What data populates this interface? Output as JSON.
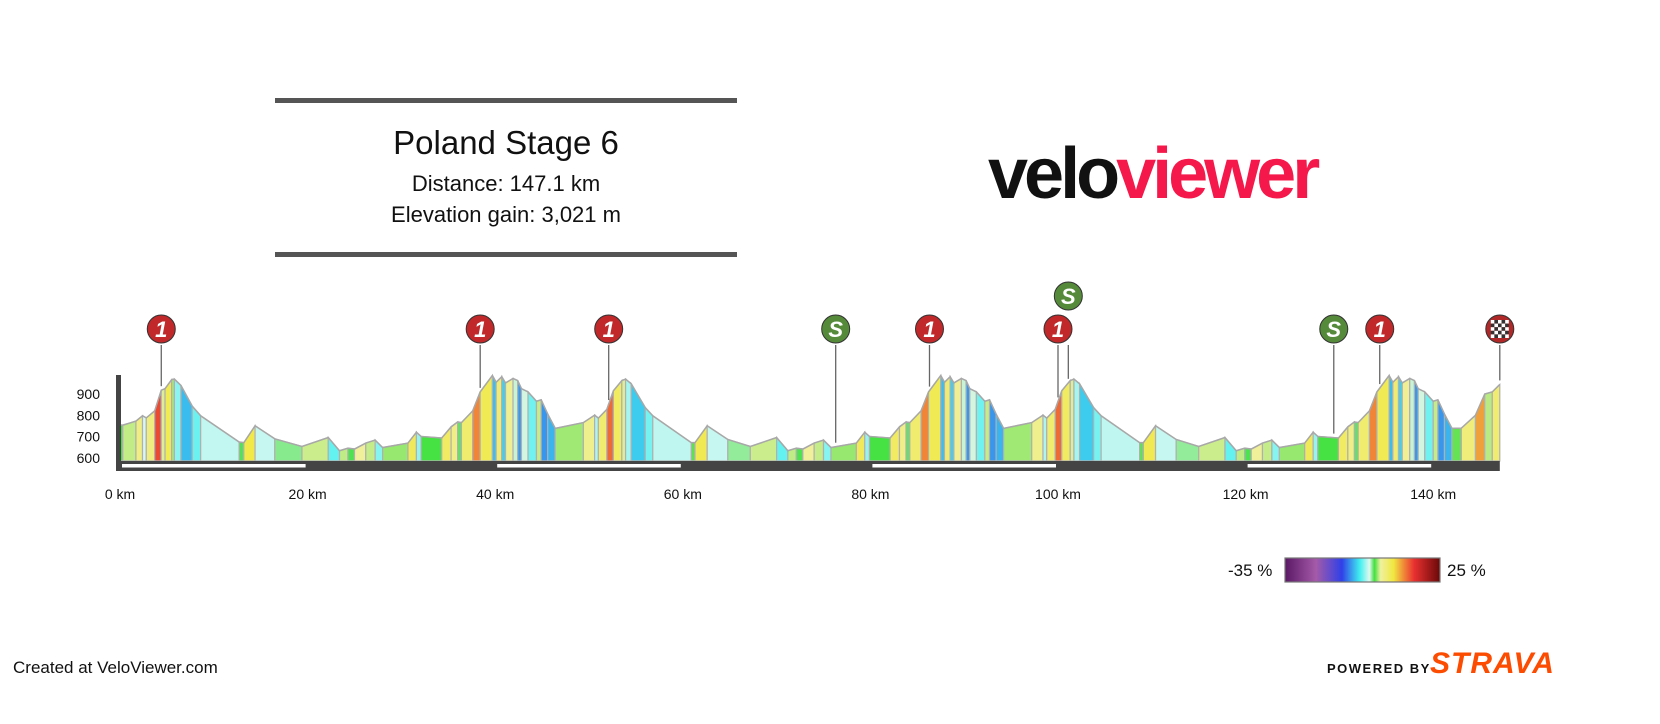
{
  "header": {
    "title": "Poland Stage 6",
    "distance": "Distance: 147.1 km",
    "elevation_gain": "Elevation gain: 3,021 m"
  },
  "logo": {
    "part1": "velo",
    "part2": "viewer",
    "color1": "#111111",
    "color2": "#f5184a"
  },
  "footer": {
    "created": "Created at VeloViewer.com",
    "powered_by": "POWERED BY",
    "strava": "STRAVA",
    "strava_color": "#fc4c02"
  },
  "legend": {
    "min_label": "-35 %",
    "max_label": "25 %",
    "min": -35,
    "max": 25,
    "stops": [
      [
        -35,
        "#5a1865"
      ],
      [
        -23,
        "#a45aa8"
      ],
      [
        -13,
        "#3040e8"
      ],
      [
        -6,
        "#40f0f0"
      ],
      [
        -2.3,
        "#e0f8f0"
      ],
      [
        -0.4,
        "#40e040"
      ],
      [
        2,
        "#f0f0a0"
      ],
      [
        7,
        "#f0e840"
      ],
      [
        11,
        "#f08838"
      ],
      [
        15,
        "#e83030"
      ],
      [
        25,
        "#6a0808"
      ]
    ]
  },
  "chart_data": {
    "type": "area",
    "xlabel": "",
    "ylabel": "",
    "x_unit": "km",
    "y_unit": "m",
    "xlim": [
      0,
      147.1
    ],
    "ylim": [
      600,
      1000
    ],
    "x_ticks": [
      "0 km",
      "20 km",
      "40 km",
      "60 km",
      "80 km",
      "100 km",
      "120 km",
      "140 km"
    ],
    "x_tick_values": [
      0,
      20,
      40,
      60,
      80,
      100,
      120,
      140
    ],
    "y_ticks": [
      "900",
      "800",
      "700",
      "600"
    ],
    "y_tick_values": [
      900,
      800,
      700,
      600
    ],
    "color_by": "gradient",
    "points": [
      [
        0,
        755
      ],
      [
        0.3,
        754
      ],
      [
        1.7,
        773
      ],
      [
        2.4,
        798
      ],
      [
        2.8,
        788
      ],
      [
        3.7,
        821
      ],
      [
        4.4,
        918
      ],
      [
        4.8,
        925
      ],
      [
        5.5,
        967
      ],
      [
        5.8,
        970
      ],
      [
        6.5,
        940
      ],
      [
        7.7,
        843
      ],
      [
        8.6,
        798
      ],
      [
        12.7,
        675
      ],
      [
        13.2,
        672
      ],
      [
        14.4,
        751
      ],
      [
        16.5,
        690
      ],
      [
        19.4,
        654
      ],
      [
        22.2,
        696
      ],
      [
        23.4,
        634
      ],
      [
        24.3,
        646
      ],
      [
        25.0,
        642
      ],
      [
        26.2,
        670
      ],
      [
        27.2,
        684
      ],
      [
        28.0,
        649
      ],
      [
        30.7,
        670
      ],
      [
        31.6,
        721
      ],
      [
        32.1,
        701
      ],
      [
        34.3,
        694
      ],
      [
        35.3,
        746
      ],
      [
        36.0,
        769
      ],
      [
        36.4,
        766
      ],
      [
        37.6,
        821
      ],
      [
        38.4,
        910
      ],
      [
        39.7,
        987
      ],
      [
        40.1,
        955
      ],
      [
        40.7,
        981
      ],
      [
        41.1,
        952
      ],
      [
        41.9,
        973
      ],
      [
        42.4,
        963
      ],
      [
        42.8,
        925
      ],
      [
        43.5,
        910
      ],
      [
        44.4,
        866
      ],
      [
        44.9,
        873
      ],
      [
        45.6,
        806
      ],
      [
        46.4,
        739
      ],
      [
        49.4,
        766
      ],
      [
        50.6,
        801
      ],
      [
        51.0,
        787
      ],
      [
        51.9,
        828
      ],
      [
        52.6,
        915
      ],
      [
        53.5,
        963
      ],
      [
        53.9,
        970
      ],
      [
        54.5,
        948
      ],
      [
        56.0,
        836
      ],
      [
        56.8,
        798
      ],
      [
        60.9,
        672
      ],
      [
        61.3,
        672
      ],
      [
        62.6,
        751
      ],
      [
        64.8,
        687
      ],
      [
        67.2,
        654
      ],
      [
        70.0,
        696
      ],
      [
        71.2,
        634
      ],
      [
        72.1,
        646
      ],
      [
        72.8,
        642
      ],
      [
        74.0,
        670
      ],
      [
        75.0,
        684
      ],
      [
        75.8,
        649
      ],
      [
        78.5,
        670
      ],
      [
        79.4,
        721
      ],
      [
        79.9,
        701
      ],
      [
        82.1,
        694
      ],
      [
        83.1,
        746
      ],
      [
        83.8,
        769
      ],
      [
        84.2,
        766
      ],
      [
        85.4,
        821
      ],
      [
        86.2,
        910
      ],
      [
        87.5,
        987
      ],
      [
        87.9,
        955
      ],
      [
        88.5,
        981
      ],
      [
        88.9,
        952
      ],
      [
        89.7,
        973
      ],
      [
        90.2,
        963
      ],
      [
        90.6,
        925
      ],
      [
        91.3,
        910
      ],
      [
        92.2,
        866
      ],
      [
        92.7,
        873
      ],
      [
        93.4,
        806
      ],
      [
        94.2,
        739
      ],
      [
        97.2,
        766
      ],
      [
        98.4,
        801
      ],
      [
        98.8,
        787
      ],
      [
        99.7,
        828
      ],
      [
        100.4,
        915
      ],
      [
        101.3,
        963
      ],
      [
        101.7,
        970
      ],
      [
        102.3,
        948
      ],
      [
        103.8,
        836
      ],
      [
        104.6,
        798
      ],
      [
        108.7,
        672
      ],
      [
        109.1,
        672
      ],
      [
        110.4,
        751
      ],
      [
        112.6,
        687
      ],
      [
        115.0,
        654
      ],
      [
        117.8,
        696
      ],
      [
        119.0,
        634
      ],
      [
        119.9,
        646
      ],
      [
        120.6,
        642
      ],
      [
        121.8,
        670
      ],
      [
        122.8,
        684
      ],
      [
        123.6,
        649
      ],
      [
        126.3,
        670
      ],
      [
        127.2,
        721
      ],
      [
        127.7,
        701
      ],
      [
        129.9,
        694
      ],
      [
        130.9,
        746
      ],
      [
        131.6,
        769
      ],
      [
        132.0,
        766
      ],
      [
        133.2,
        821
      ],
      [
        134.0,
        910
      ],
      [
        135.3,
        987
      ],
      [
        135.7,
        955
      ],
      [
        136.3,
        981
      ],
      [
        136.7,
        952
      ],
      [
        137.5,
        973
      ],
      [
        138.0,
        963
      ],
      [
        138.4,
        925
      ],
      [
        139.1,
        910
      ],
      [
        140.0,
        866
      ],
      [
        140.5,
        873
      ],
      [
        141.2,
        806
      ],
      [
        142.0,
        739
      ],
      [
        143.0,
        740
      ],
      [
        144.5,
        800
      ],
      [
        145.5,
        900
      ],
      [
        146.3,
        910
      ],
      [
        147.1,
        945
      ]
    ],
    "markers": [
      {
        "km": 4.4,
        "type": "kom",
        "label": "1",
        "color": "#c0282a",
        "row": 0
      },
      {
        "km": 38.4,
        "type": "kom",
        "label": "1",
        "color": "#c0282a",
        "row": 0
      },
      {
        "km": 52.1,
        "type": "kom",
        "label": "1",
        "color": "#c0282a",
        "row": 0
      },
      {
        "km": 76.3,
        "type": "sprint",
        "label": "S",
        "color": "#558a3a",
        "row": 0
      },
      {
        "km": 86.3,
        "type": "kom",
        "label": "1",
        "color": "#c0282a",
        "row": 0
      },
      {
        "km": 100.0,
        "type": "kom",
        "label": "1",
        "color": "#c0282a",
        "row": 0
      },
      {
        "km": 101.1,
        "type": "sprint",
        "label": "S",
        "color": "#558a3a",
        "row": 1
      },
      {
        "km": 129.4,
        "type": "sprint",
        "label": "S",
        "color": "#558a3a",
        "row": 0
      },
      {
        "km": 134.3,
        "type": "kom",
        "label": "1",
        "color": "#c0282a",
        "row": 0
      },
      {
        "km": 147.1,
        "type": "finish",
        "label": "",
        "color": "#c0282a",
        "row": 0
      }
    ]
  }
}
